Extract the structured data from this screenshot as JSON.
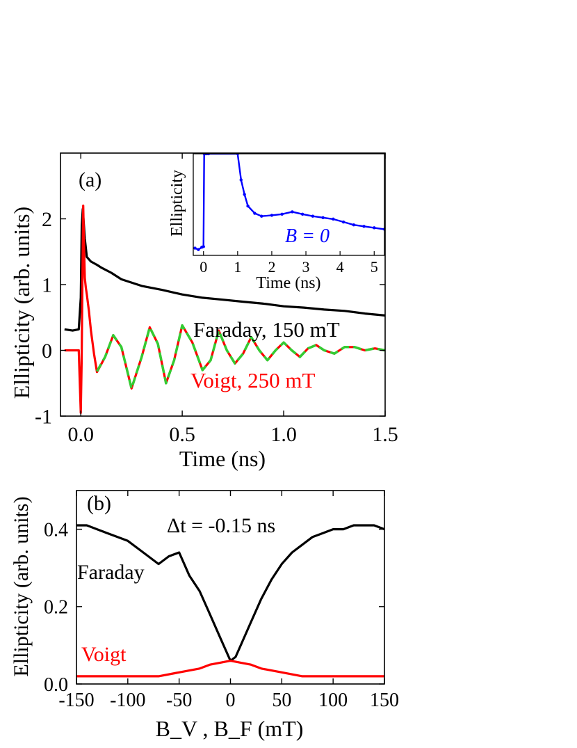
{
  "colors": {
    "black": "#000000",
    "red": "#ff0000",
    "green": "#33cc33",
    "blue": "#0000ff"
  },
  "chart_data": [
    {
      "panel": "(a)",
      "type": "line",
      "xlabel": "Time (ns)",
      "ylabel": "Ellipticity (arb. units)",
      "xlim": [
        -0.1,
        1.5
      ],
      "ylim": [
        -1,
        3.0
      ],
      "xticks": [
        0.0,
        0.5,
        1.0,
        1.5
      ],
      "xtick_labels": [
        "0.0",
        "0.5",
        "1.0",
        "1.5"
      ],
      "yticks": [
        -1,
        0,
        1,
        2
      ],
      "ytick_labels": [
        "-1",
        "0",
        "1",
        "2"
      ],
      "annotations": [
        {
          "text": "Faraday, 150 mT",
          "color": "#000000"
        },
        {
          "text": "Voigt, 250 mT",
          "color": "#ff0000"
        }
      ],
      "series": [
        {
          "color": "#000000",
          "x": [
            -0.08,
            -0.04,
            -0.01,
            0.0,
            0.005,
            0.01,
            0.02,
            0.03,
            0.05,
            0.08,
            0.1,
            0.15,
            0.2,
            0.3,
            0.4,
            0.5,
            0.6,
            0.7,
            0.8,
            0.9,
            1.0,
            1.1,
            1.2,
            1.3,
            1.4,
            1.5
          ],
          "y": [
            0.32,
            0.3,
            0.32,
            0.8,
            1.9,
            2.15,
            1.7,
            1.42,
            1.35,
            1.3,
            1.26,
            1.18,
            1.08,
            0.98,
            0.92,
            0.85,
            0.8,
            0.77,
            0.74,
            0.71,
            0.67,
            0.65,
            0.62,
            0.6,
            0.56,
            0.53
          ]
        },
        {
          "color": "#ff0000",
          "x": [
            -0.08,
            -0.04,
            -0.01,
            0.0,
            0.004,
            0.008,
            0.012,
            0.016,
            0.02,
            0.025,
            0.03,
            0.04,
            0.05,
            0.065,
            0.08,
            0.12,
            0.16,
            0.2,
            0.25,
            0.3,
            0.34,
            0.38,
            0.42,
            0.46,
            0.5,
            0.55,
            0.6,
            0.64,
            0.68,
            0.72,
            0.76,
            0.8,
            0.84,
            0.88,
            0.92,
            0.96,
            1.0,
            1.04,
            1.08,
            1.12,
            1.16,
            1.2,
            1.25,
            1.3,
            1.35,
            1.4,
            1.45,
            1.5
          ],
          "y": [
            0.0,
            0.0,
            0.0,
            -0.95,
            -0.2,
            1.0,
            2.2,
            1.6,
            1.1,
            0.95,
            0.85,
            0.6,
            0.3,
            -0.05,
            -0.33,
            -0.1,
            0.23,
            0.05,
            -0.58,
            -0.1,
            0.35,
            0.1,
            -0.5,
            -0.15,
            0.38,
            0.12,
            -0.3,
            -0.15,
            0.3,
            0.0,
            -0.2,
            -0.05,
            0.2,
            0.0,
            -0.15,
            0.0,
            0.12,
            0.0,
            -0.1,
            0.03,
            0.08,
            0.0,
            -0.05,
            0.05,
            0.05,
            0.0,
            0.03,
            0.0
          ]
        },
        {
          "color": "#33cc33",
          "dashed": true,
          "x": [
            0.08,
            0.12,
            0.16,
            0.2,
            0.25,
            0.3,
            0.34,
            0.38,
            0.42,
            0.46,
            0.5,
            0.55,
            0.6,
            0.64,
            0.68,
            0.72,
            0.76,
            0.8,
            0.84,
            0.88,
            0.92,
            0.96,
            1.0,
            1.04,
            1.08,
            1.12,
            1.16,
            1.2,
            1.25,
            1.3,
            1.35,
            1.4,
            1.45,
            1.5
          ],
          "y": [
            -0.32,
            -0.1,
            0.23,
            0.05,
            -0.58,
            -0.1,
            0.35,
            0.1,
            -0.5,
            -0.15,
            0.38,
            0.12,
            -0.3,
            -0.15,
            0.3,
            0.0,
            -0.2,
            -0.05,
            0.2,
            0.0,
            -0.15,
            0.0,
            0.12,
            0.0,
            -0.1,
            0.03,
            0.08,
            0.0,
            -0.05,
            0.05,
            0.05,
            0.0,
            0.03,
            0.0
          ]
        }
      ],
      "inset": {
        "type": "scatter",
        "xlabel": "Time (ns)",
        "ylabel": "Ellipticity",
        "xlim": [
          -0.3,
          5.3
        ],
        "ylim": [
          -1.0,
          2.5
        ],
        "xticks": [
          0,
          1,
          2,
          3,
          4,
          5
        ],
        "xtick_labels": [
          "0",
          "1",
          "2",
          "3",
          "4",
          "5"
        ],
        "annotation": "B = 0",
        "color": "#0000ff",
        "x": [
          -0.25,
          -0.15,
          -0.05,
          0.0,
          0.02,
          0.05,
          0.1,
          0.15,
          1.0,
          1.1,
          1.2,
          1.3,
          1.5,
          1.7,
          2.0,
          2.3,
          2.6,
          2.9,
          3.2,
          3.5,
          3.8,
          4.1,
          4.4,
          4.7,
          5.0,
          5.3
        ],
        "y": [
          -0.75,
          -0.8,
          -0.72,
          -0.7,
          2.5,
          2.5,
          2.5,
          2.5,
          2.5,
          1.6,
          1.1,
          0.7,
          0.45,
          0.35,
          0.38,
          0.42,
          0.5,
          0.42,
          0.35,
          0.3,
          0.25,
          0.15,
          0.05,
          0.0,
          -0.05,
          -0.1
        ]
      }
    },
    {
      "panel": "(b)",
      "type": "line",
      "xlabel": "B_V , B_F (mT)",
      "ylabel": "Ellipticity (arb. units)",
      "xlim": [
        -150,
        150
      ],
      "ylim": [
        0.0,
        0.5
      ],
      "xticks": [
        -150,
        -100,
        -50,
        0,
        50,
        100,
        150
      ],
      "xtick_labels": [
        "-150",
        "-100",
        "-50",
        "0",
        "50",
        "100",
        "150"
      ],
      "yticks": [
        0.0,
        0.2,
        0.4
      ],
      "ytick_labels": [
        "0.0",
        "0.2",
        "0.4"
      ],
      "annotations": [
        {
          "text": "Δt = -0.15 ns",
          "color": "#000000"
        },
        {
          "text": "Faraday",
          "color": "#000000"
        },
        {
          "text": "Voigt",
          "color": "#ff0000"
        }
      ],
      "series": [
        {
          "color": "#000000",
          "x": [
            -150,
            -140,
            -130,
            -120,
            -110,
            -100,
            -90,
            -80,
            -70,
            -60,
            -50,
            -40,
            -30,
            -20,
            -10,
            -5,
            0,
            5,
            10,
            20,
            30,
            40,
            50,
            60,
            70,
            80,
            90,
            100,
            110,
            120,
            130,
            140,
            150
          ],
          "y": [
            0.41,
            0.41,
            0.4,
            0.39,
            0.38,
            0.37,
            0.35,
            0.33,
            0.31,
            0.33,
            0.34,
            0.28,
            0.24,
            0.18,
            0.12,
            0.09,
            0.06,
            0.07,
            0.1,
            0.16,
            0.22,
            0.27,
            0.31,
            0.34,
            0.36,
            0.38,
            0.39,
            0.4,
            0.4,
            0.41,
            0.41,
            0.41,
            0.4
          ]
        },
        {
          "color": "#ff0000",
          "x": [
            -150,
            -130,
            -110,
            -90,
            -70,
            -50,
            -30,
            -20,
            -10,
            0,
            10,
            20,
            30,
            50,
            70,
            90,
            110,
            130,
            150
          ],
          "y": [
            0.02,
            0.02,
            0.02,
            0.02,
            0.02,
            0.03,
            0.04,
            0.05,
            0.055,
            0.06,
            0.055,
            0.05,
            0.04,
            0.03,
            0.02,
            0.02,
            0.02,
            0.02,
            0.02
          ]
        }
      ]
    }
  ]
}
